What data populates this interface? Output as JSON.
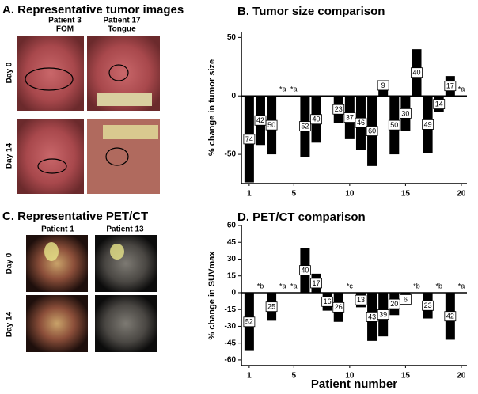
{
  "panels": {
    "a": {
      "title": "A. Representative tumor images",
      "columns": [
        "Patient 3",
        "FOM",
        "Patient 17",
        "Tongue"
      ],
      "rows": [
        "Day 0",
        "Day 14"
      ]
    },
    "c": {
      "title": "C. Representative PET/CT",
      "columns": [
        "Patient 1",
        "Patient 13"
      ],
      "rows": [
        "Day 0",
        "Day 14"
      ]
    }
  },
  "chart_data": [
    {
      "type": "bar",
      "title": "B. Tumor size comparison",
      "ylabel": "% change in tumor size",
      "color": "#000000",
      "x": [
        1,
        2,
        3,
        4,
        5,
        6,
        7,
        8,
        9,
        10,
        11,
        12,
        13,
        14,
        15,
        16,
        17,
        18,
        19,
        20
      ],
      "values": [
        -74,
        -42,
        -50,
        null,
        null,
        -52,
        -40,
        null,
        -23,
        -37,
        -46,
        -60,
        9,
        -50,
        -30,
        40,
        -49,
        -14,
        17,
        null
      ],
      "value_labels": [
        "74",
        "42",
        "50",
        "*a",
        "*a",
        "52",
        "40",
        null,
        "23",
        "37",
        "46",
        "60",
        "9",
        "50",
        "30",
        "40",
        "49",
        "14",
        "17",
        "*a"
      ],
      "xlim": [
        0.3,
        20.5
      ],
      "xticks": [
        1,
        5,
        10,
        15,
        20
      ],
      "ylim": [
        -75,
        55
      ],
      "yticks": [
        50,
        0,
        -50
      ]
    },
    {
      "type": "bar",
      "title": "D. PET/CT comparison",
      "ylabel": "% change in SUVmax",
      "xlabel": "Patient number",
      "color": "#000000",
      "x": [
        1,
        2,
        3,
        4,
        5,
        6,
        7,
        8,
        9,
        10,
        11,
        12,
        13,
        14,
        15,
        16,
        17,
        18,
        19,
        20
      ],
      "values": [
        -52,
        null,
        -25,
        null,
        null,
        40,
        17,
        -16,
        -26,
        null,
        -13,
        -43,
        -39,
        -20,
        -6,
        null,
        -23,
        null,
        -42,
        null
      ],
      "value_labels": [
        "52",
        "*b",
        "25",
        "*a",
        "*a",
        "40",
        "17",
        "16",
        "26",
        "*c",
        "13",
        "43",
        "39",
        "20",
        "6",
        "*b",
        "23",
        "*b",
        "42",
        "*a"
      ],
      "xlim": [
        0.3,
        20.5
      ],
      "xticks": [
        1,
        5,
        10,
        15,
        20
      ],
      "ylim": [
        -65,
        60
      ],
      "yticks": [
        60,
        45,
        30,
        15,
        0,
        -15,
        -30,
        -45,
        -60
      ]
    }
  ]
}
